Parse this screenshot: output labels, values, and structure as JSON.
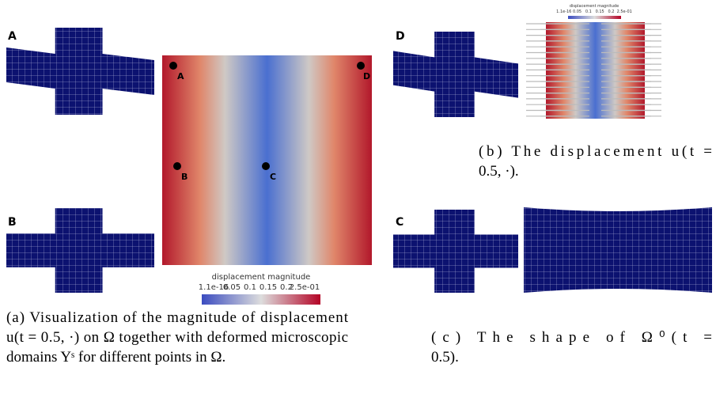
{
  "left_labels": [
    "A",
    "B"
  ],
  "point_labels": [
    "A",
    "B",
    "C",
    "D"
  ],
  "right_labels": [
    "D",
    "C"
  ],
  "colorbar": {
    "title": "displacement magnitude",
    "ticks": [
      "1.1e-16",
      "0.05",
      "0.1",
      "0.15",
      "0.2",
      "2.5e-01"
    ]
  },
  "small_colorbar": {
    "title": "displacement magnitude",
    "ticks": "1.1e-16 0.05   0.1   0.15   0.2  2.5e-01"
  },
  "captions": {
    "a": [
      "(a) Visualization of the magnitude of displacement",
      "u(t = 0.5, ·) on Ω together with deformed microscopic",
      "domains Yˢ for different points in Ω."
    ],
    "b": [
      "(b) The displacement u(t =",
      "0.5, ·)."
    ],
    "c": [
      "(c) The shape of Ω⁰(t =",
      "0.5)."
    ]
  }
}
